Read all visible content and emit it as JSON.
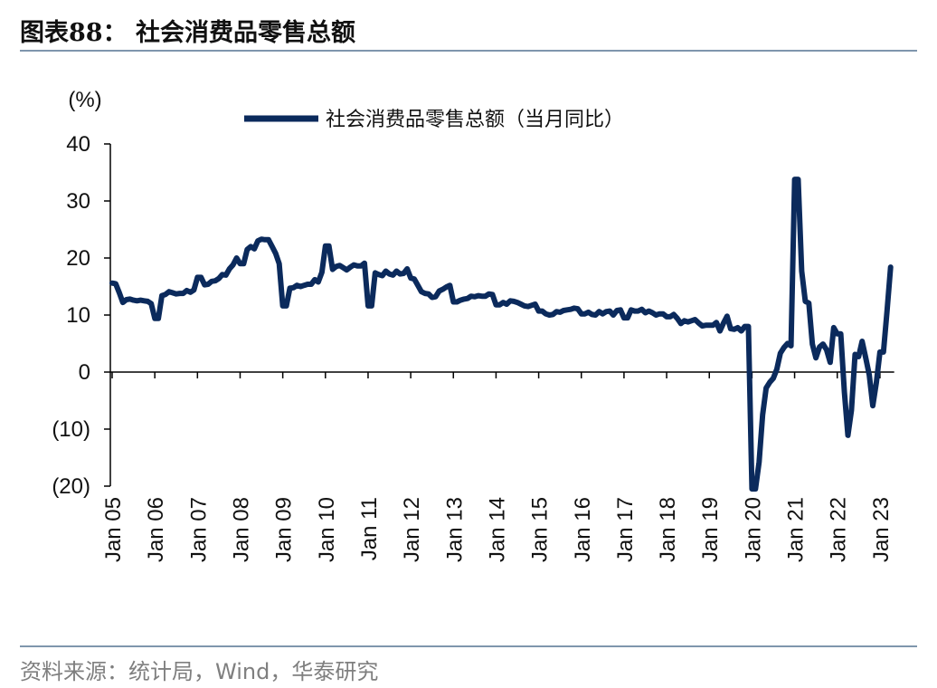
{
  "header": {
    "title": "图表88： 社会消费品零售总额"
  },
  "footer": {
    "source": "资料来源：统计局，Wind，华泰研究"
  },
  "chart_data": {
    "type": "line",
    "ylabel": "(%)",
    "ylim": [
      -20,
      40
    ],
    "yticks": [
      40,
      30,
      20,
      10,
      0,
      -10,
      -20
    ],
    "ytick_labels": [
      "40",
      "30",
      "20",
      "10",
      "0",
      "(10)",
      "(20)"
    ],
    "xtick_labels": [
      "Jan 05",
      "Jan 06",
      "Jan 07",
      "Jan 08",
      "Jan 09",
      "Jan 10",
      "Jan 11",
      "Jan 12",
      "Jan 13",
      "Jan 14",
      "Jan 15",
      "Jan 16",
      "Jan 17",
      "Jan 18",
      "Jan 19",
      "Jan 20",
      "Jan 21",
      "Jan 22",
      "Jan 23"
    ],
    "legend_position": "top-center",
    "series": [
      {
        "name": "社会消费品零售总额（当月同比）",
        "color": "#0b2a5c",
        "start": "Jan 05",
        "frequency": "monthly",
        "values": [
          15.6,
          15.5,
          13.9,
          12.2,
          12.7,
          12.8,
          12.6,
          12.5,
          12.6,
          12.5,
          12.4,
          12.0,
          9.4,
          9.4,
          13.4,
          13.6,
          14.1,
          13.9,
          13.7,
          13.8,
          13.8,
          14.3,
          14.0,
          14.4,
          16.6,
          16.6,
          15.3,
          15.4,
          15.9,
          16.0,
          16.4,
          17.1,
          17.0,
          18.1,
          18.8,
          20.0,
          19.0,
          19.0,
          21.5,
          22.0,
          21.6,
          23.0,
          23.3,
          23.2,
          23.2,
          22.0,
          20.8,
          19.0,
          11.6,
          11.6,
          14.7,
          14.8,
          15.2,
          15.0,
          15.2,
          15.4,
          15.4,
          16.2,
          15.8,
          17.5,
          22.1,
          22.1,
          18.0,
          18.5,
          18.7,
          18.3,
          17.9,
          18.4,
          18.8,
          18.6,
          18.6,
          19.1,
          11.6,
          11.6,
          17.4,
          17.1,
          16.9,
          17.7,
          17.2,
          17.0,
          17.7,
          17.2,
          17.3,
          18.1,
          16.5,
          16.3,
          15.2,
          14.1,
          13.8,
          13.7,
          13.1,
          13.2,
          14.2,
          14.5,
          14.9,
          15.2,
          12.3,
          12.3,
          12.6,
          12.8,
          12.9,
          13.3,
          13.2,
          13.4,
          13.3,
          13.3,
          13.7,
          13.6,
          11.8,
          11.8,
          12.2,
          11.9,
          12.5,
          12.4,
          12.2,
          11.9,
          11.6,
          11.5,
          11.7,
          11.9,
          10.7,
          10.7,
          10.2,
          10.0,
          10.1,
          10.6,
          10.5,
          10.8,
          10.9,
          11.0,
          11.2,
          11.1,
          10.2,
          10.2,
          10.5,
          10.1,
          10.0,
          10.6,
          10.2,
          10.6,
          10.7,
          10.0,
          10.8,
          10.9,
          9.5,
          9.5,
          10.9,
          10.7,
          10.7,
          11.0,
          10.4,
          10.7,
          10.4,
          10.0,
          10.2,
          10.2,
          9.7,
          9.7,
          10.1,
          9.4,
          8.5,
          9.0,
          8.8,
          9.0,
          9.2,
          8.6,
          8.1,
          8.2,
          8.2,
          8.2,
          8.7,
          7.2,
          8.6,
          9.8,
          7.6,
          7.5,
          7.8,
          7.2,
          8.0,
          8.0,
          -20.5,
          -20.5,
          -15.8,
          -7.5,
          -2.8,
          -1.8,
          -1.1,
          0.5,
          3.3,
          4.3,
          5.0,
          4.6,
          33.8,
          33.8,
          17.7,
          12.4,
          12.1,
          4.9,
          2.5,
          4.4,
          4.9,
          3.9,
          1.7,
          7.8,
          6.7,
          6.7,
          -3.5,
          -11.1,
          -6.7,
          3.1,
          2.7,
          5.4,
          2.5,
          -0.5,
          -5.9,
          -1.8,
          3.5,
          3.5,
          10.6,
          18.4
        ]
      }
    ]
  }
}
